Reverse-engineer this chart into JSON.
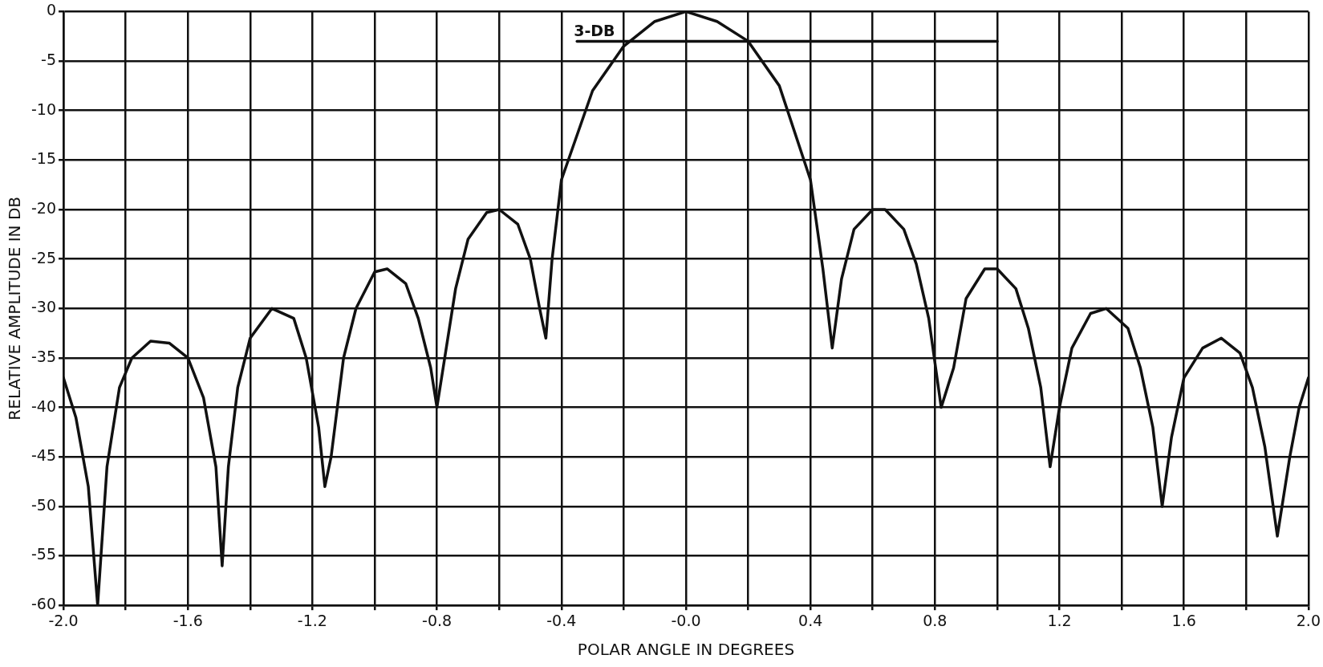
{
  "chart_data": {
    "type": "line",
    "xlabel": "POLAR ANGLE IN DEGREES",
    "ylabel": "RELATIVE AMPLITUDE IN DB",
    "xlim": [
      -2.0,
      2.0
    ],
    "xticks": [
      {
        "value": -2.0,
        "label": "-2.0"
      },
      {
        "value": -1.8,
        "label": null
      },
      {
        "value": -1.6,
        "label": "-1.6"
      },
      {
        "value": -1.4,
        "label": null
      },
      {
        "value": -1.2,
        "label": "-1.2"
      },
      {
        "value": -1.0,
        "label": null
      },
      {
        "value": -0.8,
        "label": "-0.8"
      },
      {
        "value": -0.6,
        "label": null
      },
      {
        "value": -0.4,
        "label": "-0.4"
      },
      {
        "value": -0.2,
        "label": null
      },
      {
        "value": 0,
        "label": "-0.0"
      },
      {
        "value": 0.2,
        "label": null
      },
      {
        "value": 0.4,
        "label": "0.4"
      },
      {
        "value": 0.6,
        "label": null
      },
      {
        "value": 0.8,
        "label": "0.8"
      },
      {
        "value": 1.0,
        "label": null
      },
      {
        "value": 1.2,
        "label": "1.2"
      },
      {
        "value": 1.4,
        "label": null
      },
      {
        "value": 1.6,
        "label": "1.6"
      },
      {
        "value": 1.8,
        "label": null
      },
      {
        "value": 2.0,
        "label": "2.0"
      }
    ],
    "ylim": [
      -60,
      0
    ],
    "yticks": [
      0,
      -5,
      -10,
      -15,
      -20,
      -25,
      -30,
      -35,
      -40,
      -45,
      -50,
      -55,
      -60
    ],
    "grid": true,
    "marker": "none",
    "line_style": "solid",
    "legend": false,
    "series": [
      {
        "color": "#111111",
        "x": [
          -2.0,
          -1.96,
          -1.92,
          -1.89,
          -1.86,
          -1.82,
          -1.78,
          -1.72,
          -1.66,
          -1.6,
          -1.55,
          -1.51,
          -1.49,
          -1.47,
          -1.44,
          -1.4,
          -1.33,
          -1.26,
          -1.22,
          -1.18,
          -1.16,
          -1.14,
          -1.1,
          -1.06,
          -1.0,
          -0.96,
          -0.9,
          -0.86,
          -0.82,
          -0.8,
          -0.78,
          -0.74,
          -0.7,
          -0.64,
          -0.6,
          -0.54,
          -0.5,
          -0.47,
          -0.45,
          -0.43,
          -0.4,
          -0.3,
          -0.2,
          -0.1,
          0,
          0.1,
          0.2,
          0.3,
          0.4,
          0.44,
          0.47,
          0.5,
          0.54,
          0.6,
          0.64,
          0.7,
          0.74,
          0.78,
          0.82,
          0.86,
          0.9,
          0.96,
          1.0,
          1.06,
          1.1,
          1.14,
          1.17,
          1.2,
          1.24,
          1.3,
          1.35,
          1.42,
          1.46,
          1.5,
          1.53,
          1.56,
          1.6,
          1.66,
          1.72,
          1.78,
          1.82,
          1.86,
          1.9,
          1.94,
          1.97,
          2.0
        ],
        "values": [
          -37,
          -41,
          -48,
          -60,
          -46,
          -38,
          -35,
          -33.3,
          -33.5,
          -35,
          -39,
          -46,
          -56,
          -46,
          -38,
          -33,
          -30,
          -31,
          -35,
          -42,
          -48,
          -45,
          -35,
          -30,
          -26.3,
          -26,
          -27.5,
          -31,
          -36,
          -40,
          -36,
          -28,
          -23,
          -20.3,
          -20,
          -21.5,
          -25,
          -30,
          -33,
          -25,
          -17,
          -8,
          -3.5,
          -1,
          0,
          -1,
          -3,
          -7.5,
          -17,
          -26,
          -34,
          -27,
          -22,
          -20,
          -20,
          -22,
          -25.5,
          -31,
          -40,
          -36,
          -29,
          -26,
          -26,
          -28,
          -32,
          -38,
          -46,
          -40,
          -34,
          -30.5,
          -30,
          -32,
          -36,
          -42,
          -50,
          -43,
          -37,
          -34,
          -33,
          -34.5,
          -38,
          -44,
          -53,
          -45,
          -40,
          -37
        ]
      },
      {
        "color": "#111111",
        "x": [
          -0.35,
          1.0
        ],
        "values": [
          -3,
          -3
        ]
      }
    ],
    "annotations": [
      {
        "text": "3-DB",
        "x": -0.35,
        "y": -3
      }
    ]
  }
}
